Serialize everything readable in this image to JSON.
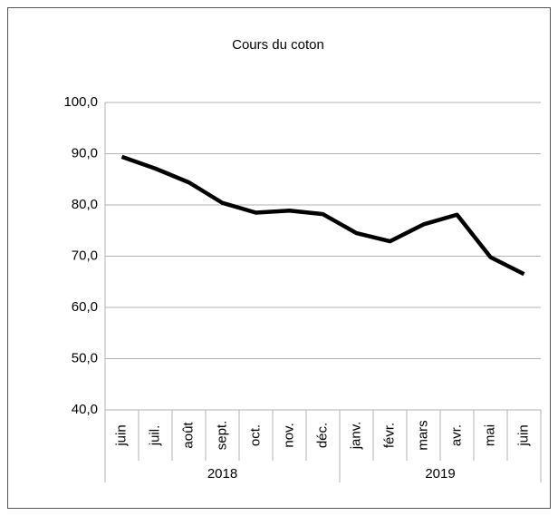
{
  "chart_data": {
    "type": "line",
    "title": "Cours du coton",
    "categories": [
      "juin",
      "juil.",
      "août",
      "sept.",
      "oct.",
      "nov.",
      "déc.",
      "janv.",
      "févr.",
      "mars",
      "avr.",
      "mai",
      "juin"
    ],
    "x_groups": [
      {
        "label": "2018",
        "span": 7
      },
      {
        "label": "2019",
        "span": 6
      }
    ],
    "series": [
      {
        "color": "#000000",
        "values": [
          89.4,
          87.1,
          84.4,
          80.4,
          78.5,
          78.9,
          78.2,
          74.5,
          72.9,
          76.2,
          78.1,
          69.8,
          66.5
        ]
      }
    ],
    "ylim": [
      40,
      100
    ],
    "yticks": [
      {
        "value": 40,
        "label": "40,0"
      },
      {
        "value": 50,
        "label": "50,0"
      },
      {
        "value": 60,
        "label": "60,0"
      },
      {
        "value": 70,
        "label": "70,0"
      },
      {
        "value": 80,
        "label": "80,0"
      },
      {
        "value": 90,
        "label": "90,0"
      },
      {
        "value": 100,
        "label": "100,0"
      }
    ],
    "grid": true
  }
}
